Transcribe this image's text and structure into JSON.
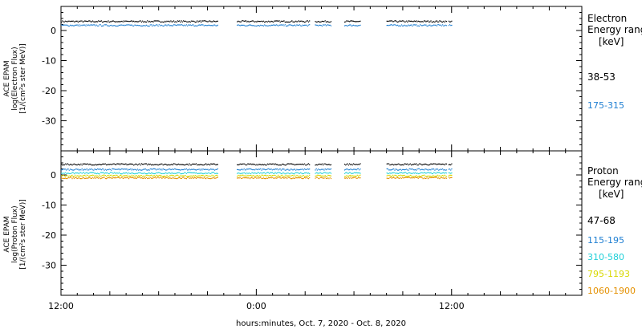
{
  "chart_data": [
    {
      "type": "scatter",
      "ylabel_lines": [
        "ACE EPAM",
        "log(Electron Flux)",
        "[1/(cm²s ster MeV)]"
      ],
      "ylim": [
        -40,
        8
      ],
      "yticks": [
        0,
        -10,
        -20,
        -30
      ],
      "xlim": [
        0,
        32
      ],
      "legend": {
        "title_lines": [
          "Electron",
          "Energy ranges",
          "[keV]"
        ],
        "entries": [
          "38-53",
          "175-315"
        ]
      },
      "series": [
        {
          "name": "38-53",
          "color": "#000000",
          "level": 3.0
        },
        {
          "name": "175-315",
          "color": "#1f7fd2",
          "level": 1.7
        }
      ]
    },
    {
      "type": "scatter",
      "ylabel_lines": [
        "ACE EPAM",
        "log(Proton Flux)",
        "[1/(cm²s ster MeV)]"
      ],
      "ylim": [
        -40,
        8
      ],
      "yticks": [
        0,
        -10,
        -20,
        -30
      ],
      "xlim": [
        0,
        32
      ],
      "legend": {
        "title_lines": [
          "Proton",
          "Energy ranges",
          "[keV]"
        ],
        "entries": [
          "47-68",
          "115-195",
          "310-580",
          "795-1193",
          "1060-1900"
        ]
      },
      "series": [
        {
          "name": "47-68",
          "color": "#000000",
          "level": 3.5
        },
        {
          "name": "115-195",
          "color": "#1f7fd2",
          "level": 1.8
        },
        {
          "name": "310-580",
          "color": "#22d0d8",
          "level": 0.6
        },
        {
          "name": "795-1193",
          "color": "#d8d800",
          "level": -0.3
        },
        {
          "name": "1060-1900",
          "color": "#e49000",
          "level": -1.0
        }
      ]
    }
  ],
  "x_axis": {
    "tick_labels": [
      {
        "hour": 0,
        "label": "12:00"
      },
      {
        "hour": 12,
        "label": "0:00"
      },
      {
        "hour": 24,
        "label": "12:00"
      }
    ],
    "xlabel": "hours:minutes, Oct.  7, 2020 - Oct.  8, 2020"
  },
  "data_segments_hours": [
    [
      0,
      9.6
    ],
    [
      10.8,
      15.3
    ],
    [
      15.6,
      16.6
    ],
    [
      17.4,
      18.4
    ],
    [
      20.0,
      23.7
    ],
    [
      23.8,
      24.0
    ]
  ]
}
